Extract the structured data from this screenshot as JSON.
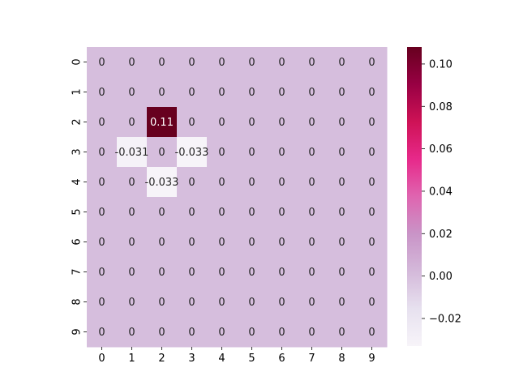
{
  "chart_data": {
    "type": "heatmap",
    "title": "",
    "xlabel": "",
    "ylabel": "",
    "x_tick_labels": [
      "0",
      "1",
      "2",
      "3",
      "4",
      "5",
      "6",
      "7",
      "8",
      "9"
    ],
    "y_tick_labels": [
      "0",
      "1",
      "2",
      "3",
      "4",
      "5",
      "6",
      "7",
      "8",
      "9"
    ],
    "values": [
      [
        0,
        0,
        0,
        0,
        0,
        0,
        0,
        0,
        0,
        0
      ],
      [
        0,
        0,
        0,
        0,
        0,
        0,
        0,
        0,
        0,
        0
      ],
      [
        0,
        0,
        0.108,
        0,
        0,
        0,
        0,
        0,
        0,
        0
      ],
      [
        0,
        -0.031,
        0,
        -0.033,
        0,
        0,
        0,
        0,
        0,
        0
      ],
      [
        0,
        0,
        -0.033,
        0,
        0,
        0,
        0,
        0,
        0,
        0
      ],
      [
        0,
        0,
        0,
        0,
        0,
        0,
        0,
        0,
        0,
        0
      ],
      [
        0,
        0,
        0,
        0,
        0,
        0,
        0,
        0,
        0,
        0
      ],
      [
        0,
        0,
        0,
        0,
        0,
        0,
        0,
        0,
        0,
        0
      ],
      [
        0,
        0,
        0,
        0,
        0,
        0,
        0,
        0,
        0,
        0
      ],
      [
        0,
        0,
        0,
        0,
        0,
        0,
        0,
        0,
        0,
        0
      ]
    ],
    "cell_labels": [
      [
        "0",
        "0",
        "0",
        "0",
        "0",
        "0",
        "0",
        "0",
        "0",
        "0"
      ],
      [
        "0",
        "0",
        "0",
        "0",
        "0",
        "0",
        "0",
        "0",
        "0",
        "0"
      ],
      [
        "0",
        "0",
        "0.11",
        "0",
        "0",
        "0",
        "0",
        "0",
        "0",
        "0"
      ],
      [
        "0",
        "-0.031",
        "0",
        "-0.033",
        "0",
        "0",
        "0",
        "0",
        "0",
        "0"
      ],
      [
        "0",
        "0",
        "-0.033",
        "0",
        "0",
        "0",
        "0",
        "0",
        "0",
        "0"
      ],
      [
        "0",
        "0",
        "0",
        "0",
        "0",
        "0",
        "0",
        "0",
        "0",
        "0"
      ],
      [
        "0",
        "0",
        "0",
        "0",
        "0",
        "0",
        "0",
        "0",
        "0",
        "0"
      ],
      [
        "0",
        "0",
        "0",
        "0",
        "0",
        "0",
        "0",
        "0",
        "0",
        "0"
      ],
      [
        "0",
        "0",
        "0",
        "0",
        "0",
        "0",
        "0",
        "0",
        "0",
        "0"
      ],
      [
        "0",
        "0",
        "0",
        "0",
        "0",
        "0",
        "0",
        "0",
        "0",
        "0"
      ]
    ],
    "colormap": "PuRd",
    "vmin": -0.033,
    "vmax": 0.108,
    "colorbar_ticks": [
      -0.02,
      0.0,
      0.02,
      0.04,
      0.06,
      0.08,
      0.1
    ],
    "colorbar_tick_labels": [
      "−0.02",
      "0.00",
      "0.02",
      "0.04",
      "0.06",
      "0.08",
      "0.10"
    ],
    "grid": false,
    "colorbar": "right"
  }
}
